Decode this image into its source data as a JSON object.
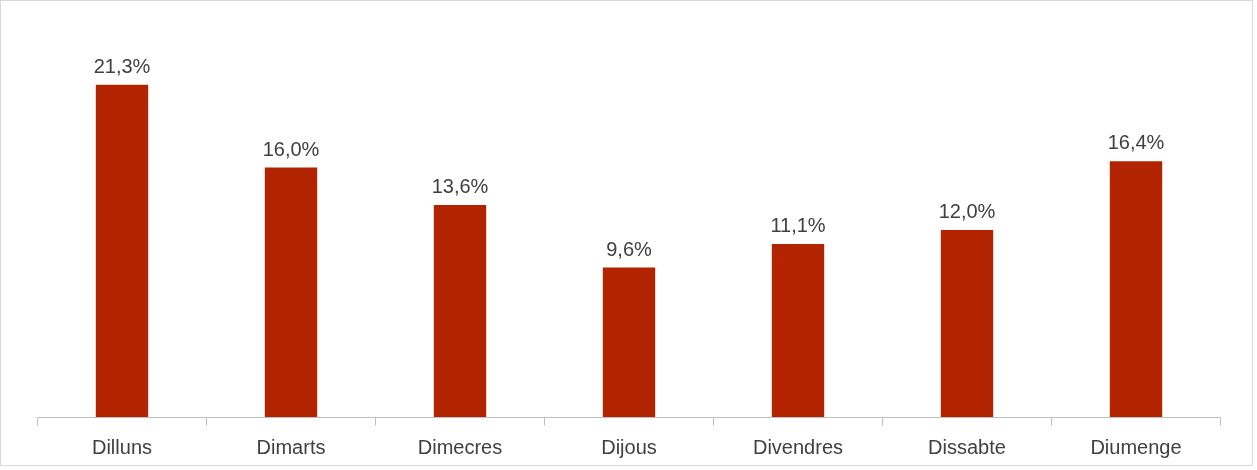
{
  "chart_data": {
    "type": "bar",
    "categories": [
      "Dilluns",
      "Dimarts",
      "Dimecres",
      "Dijous",
      "Divendres",
      "Dissabte",
      "Diumenge"
    ],
    "values": [
      21.3,
      16.0,
      13.6,
      9.6,
      11.1,
      12.0,
      16.4
    ],
    "value_labels": [
      "21,3%",
      "16,0%",
      "13,6%",
      "9,6%",
      "11,1%",
      "12,0%",
      "16,4%"
    ],
    "color": "#b22400",
    "tick_labels": "x"
  }
}
